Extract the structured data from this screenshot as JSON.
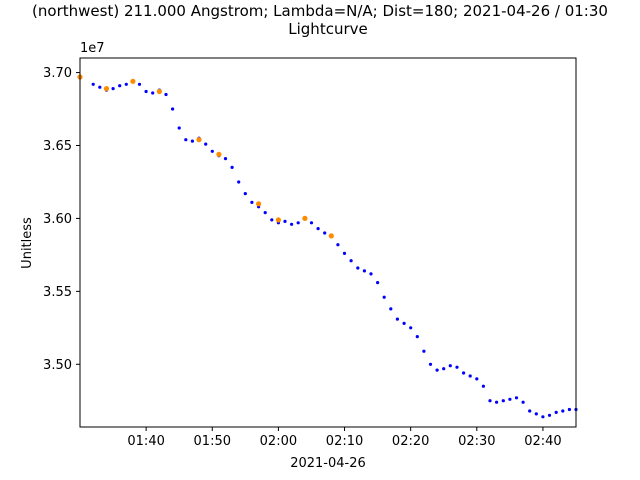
{
  "chart_data": {
    "type": "scatter",
    "title": "(northwest) 211.000 Angstrom; Lambda=N/A; Dist=180; 2021-04-26 / 01:30",
    "subtitle": "Lightcurve",
    "xlabel": "2021-04-26",
    "ylabel": "Unitless",
    "y_offset_label": "1e7",
    "x_ticks": [
      "01:40",
      "01:50",
      "02:00",
      "02:10",
      "02:20",
      "02:30",
      "02:40"
    ],
    "y_ticks": [
      "3.70",
      "3.65",
      "3.60",
      "3.55",
      "3.50"
    ],
    "xlim": [
      "01:30",
      "02:45"
    ],
    "ylim": [
      34570000,
      37100000
    ],
    "grid": false,
    "series": [
      {
        "color": "#0000ff",
        "marker": "point",
        "x": [
          "01:30",
          "01:32",
          "01:33",
          "01:34",
          "01:35",
          "01:36",
          "01:37",
          "01:38",
          "01:39",
          "01:40",
          "01:41",
          "01:42",
          "01:43",
          "01:44",
          "01:45",
          "01:46",
          "01:47",
          "01:48",
          "01:49",
          "01:50",
          "01:51",
          "01:52",
          "01:53",
          "01:54",
          "01:55",
          "01:56",
          "01:57",
          "01:58",
          "01:59",
          "02:00",
          "02:01",
          "02:02",
          "02:03",
          "02:04",
          "02:05",
          "02:06",
          "02:07",
          "02:08",
          "02:09",
          "02:10",
          "02:11",
          "02:12",
          "02:13",
          "02:14",
          "02:15",
          "02:16",
          "02:17",
          "02:18",
          "02:19",
          "02:20",
          "02:21",
          "02:22",
          "02:23",
          "02:24",
          "02:25",
          "02:26",
          "02:27",
          "02:28",
          "02:29",
          "02:30",
          "02:31",
          "02:32",
          "02:33",
          "02:34",
          "02:35",
          "02:36",
          "02:37",
          "02:38",
          "02:39",
          "02:40",
          "02:41",
          "02:42",
          "02:43",
          "02:44",
          "02:45"
        ],
        "y": [
          36970000,
          36920000,
          36900000,
          36880000,
          36890000,
          36910000,
          36920000,
          36940000,
          36920000,
          36870000,
          36860000,
          36880000,
          36850000,
          36750000,
          36620000,
          36540000,
          36530000,
          36550000,
          36510000,
          36460000,
          36430000,
          36410000,
          36350000,
          36250000,
          36170000,
          36110000,
          36080000,
          36040000,
          35990000,
          35970000,
          35980000,
          35960000,
          35970000,
          36000000,
          35970000,
          35930000,
          35900000,
          35880000,
          35820000,
          35760000,
          35710000,
          35660000,
          35640000,
          35620000,
          35560000,
          35460000,
          35380000,
          35310000,
          35280000,
          35250000,
          35190000,
          35090000,
          35000000,
          34960000,
          34970000,
          34990000,
          34980000,
          34940000,
          34920000,
          34900000,
          34850000,
          34750000,
          34740000,
          34750000,
          34760000,
          34770000,
          34740000,
          34680000,
          34660000,
          34640000,
          34650000,
          34670000,
          34680000,
          34690000,
          34690000
        ]
      },
      {
        "color": "#ff8c00",
        "marker": "circle",
        "x": [
          "01:30",
          "01:34",
          "01:38",
          "01:42",
          "01:48",
          "01:51",
          "01:57",
          "02:00",
          "02:04",
          "02:08"
        ],
        "y": [
          36970000,
          36890000,
          36940000,
          36870000,
          36540000,
          36440000,
          36100000,
          35990000,
          36000000,
          35880000
        ]
      }
    ]
  }
}
